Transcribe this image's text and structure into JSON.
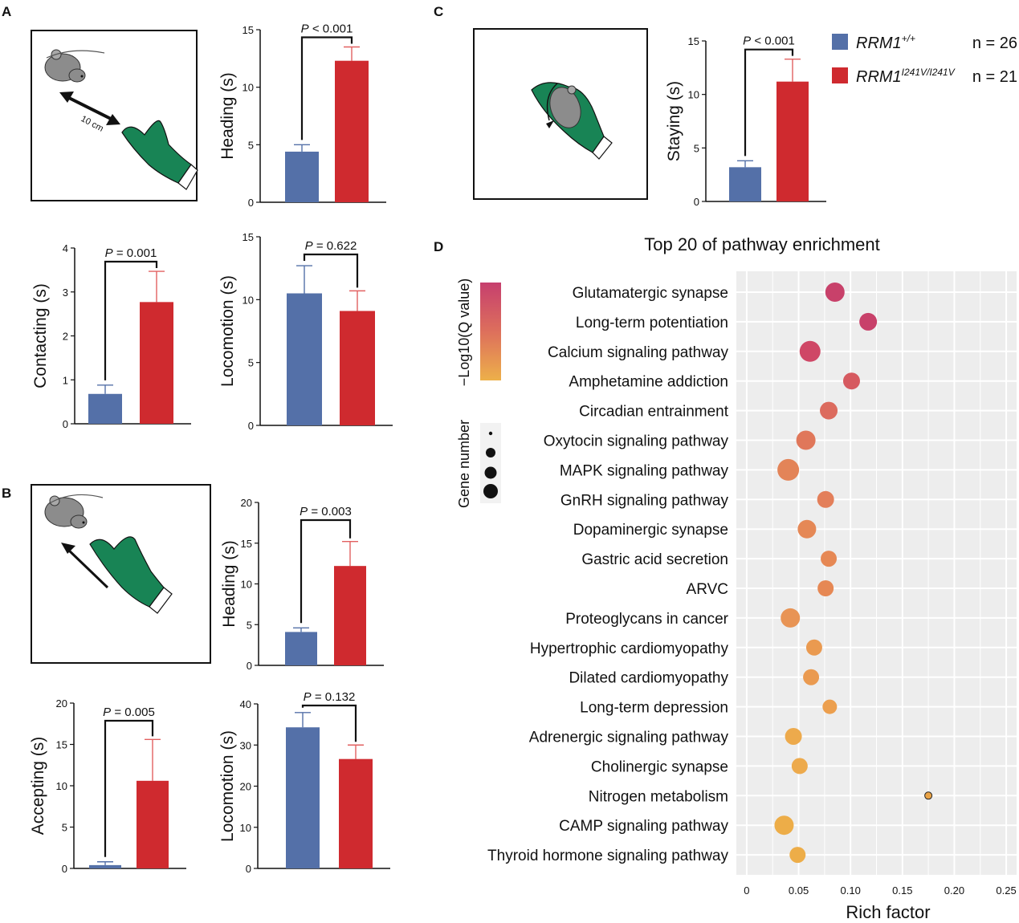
{
  "panel_labels": {
    "A": "A",
    "B": "B",
    "C": "C",
    "D": "D"
  },
  "colors": {
    "wt": "#5470A8",
    "mut": "#CF2A2F",
    "wt_err": "#5470A8",
    "mut_err": "#E26060",
    "glove": "#188455",
    "mouse": "#8C8C8C",
    "grid_bg": "#EDEDED"
  },
  "schematics": {
    "distance_label": "10 cm"
  },
  "legend": {
    "wt": {
      "gene": "RRM1",
      "sup": "+/+",
      "n": "n = 26"
    },
    "mut": {
      "gene": "RRM1",
      "sup": "I241V/I241V",
      "n": "n = 21"
    }
  },
  "chart_data": [
    {
      "id": "A_heading",
      "type": "bar",
      "ylabel": "Heading (s)",
      "categories": [
        "RRM1+/+",
        "RRM1I241V/I241V"
      ],
      "values": [
        4.4,
        12.3
      ],
      "errors": [
        0.6,
        1.2
      ],
      "ylim": [
        0,
        15
      ],
      "yticks": [
        0,
        5,
        10,
        15
      ],
      "pvalue": "P < 0.001"
    },
    {
      "id": "A_contacting",
      "type": "bar",
      "ylabel": "Contacting (s)",
      "categories": [
        "RRM1+/+",
        "RRM1I241V/I241V"
      ],
      "values": [
        0.68,
        2.77
      ],
      "errors": [
        0.2,
        0.7
      ],
      "ylim": [
        0,
        4
      ],
      "yticks": [
        0,
        1,
        2,
        3,
        4
      ],
      "pvalue": "P = 0.001"
    },
    {
      "id": "A_locomotion",
      "type": "bar",
      "ylabel": "Locomotion (s)",
      "categories": [
        "RRM1+/+",
        "RRM1I241V/I241V"
      ],
      "values": [
        10.5,
        9.1
      ],
      "errors": [
        2.2,
        1.6
      ],
      "ylim": [
        0,
        15
      ],
      "yticks": [
        0,
        5,
        10,
        15
      ],
      "pvalue": "P = 0.622"
    },
    {
      "id": "B_heading",
      "type": "bar",
      "ylabel": "Heading (s)",
      "categories": [
        "RRM1+/+",
        "RRM1I241V/I241V"
      ],
      "values": [
        4.1,
        12.2
      ],
      "errors": [
        0.5,
        3.0
      ],
      "ylim": [
        0,
        20
      ],
      "yticks": [
        0,
        5,
        10,
        15,
        20
      ],
      "pvalue": "P = 0.003"
    },
    {
      "id": "B_accepting",
      "type": "bar",
      "ylabel": "Accepting (s)",
      "categories": [
        "RRM1+/+",
        "RRM1I241V/I241V"
      ],
      "values": [
        0.4,
        10.6
      ],
      "errors": [
        0.4,
        5.0
      ],
      "ylim": [
        0,
        20
      ],
      "yticks": [
        0,
        5,
        10,
        15,
        20
      ],
      "pvalue": "P = 0.005"
    },
    {
      "id": "B_locomotion",
      "type": "bar",
      "ylabel": "Locomotion (s)",
      "categories": [
        "RRM1+/+",
        "RRM1I241V/I241V"
      ],
      "values": [
        34.3,
        26.6
      ],
      "errors": [
        3.6,
        3.4
      ],
      "ylim": [
        0,
        40
      ],
      "yticks": [
        0,
        10,
        20,
        30,
        40
      ],
      "pvalue": "P = 0.132"
    },
    {
      "id": "C_staying",
      "type": "bar",
      "ylabel": "Staying (s)",
      "categories": [
        "RRM1+/+",
        "RRM1I241V/I241V"
      ],
      "values": [
        3.2,
        11.2
      ],
      "errors": [
        0.6,
        2.1
      ],
      "ylim": [
        0,
        15
      ],
      "yticks": [
        0,
        5,
        10,
        15
      ],
      "pvalue": "P < 0.001"
    },
    {
      "id": "D_enrichment",
      "type": "scatter",
      "title": "Top 20 of pathway enrichment",
      "xlabel": "Rich factor",
      "xlim": [
        -0.01,
        0.26
      ],
      "xticks": [
        0,
        0.05,
        0.1,
        0.15,
        0.2,
        0.25
      ],
      "xtick_labels": [
        "0",
        "0.05",
        "0.10",
        "0.15",
        "0.20",
        "0.25"
      ],
      "colorbar_label": "−Log10(Q value)",
      "size_legend_label": "Gene number",
      "grid": true,
      "points": [
        {
          "pathway": "Glutamatergic synapse",
          "x": 0.085,
          "size": 12,
          "color": "#C8416A"
        },
        {
          "pathway": "Long-term potentiation",
          "x": 0.117,
          "size": 11,
          "color": "#C8416A"
        },
        {
          "pathway": "Calcium signaling pathway",
          "x": 0.061,
          "size": 13,
          "color": "#CF4766"
        },
        {
          "pathway": "Amphetamine addiction",
          "x": 0.101,
          "size": 10.5,
          "color": "#D65A60"
        },
        {
          "pathway": "Circadian entrainment",
          "x": 0.079,
          "size": 11,
          "color": "#DC6B5E"
        },
        {
          "pathway": "Oxytocin signaling pathway",
          "x": 0.057,
          "size": 12,
          "color": "#E0775A"
        },
        {
          "pathway": "MAPK signaling pathway",
          "x": 0.04,
          "size": 13.5,
          "color": "#E38458"
        },
        {
          "pathway": "GnRH signaling pathway",
          "x": 0.076,
          "size": 10.5,
          "color": "#E37F5A"
        },
        {
          "pathway": "Dopaminergic synapse",
          "x": 0.058,
          "size": 11.5,
          "color": "#E58856"
        },
        {
          "pathway": "Gastric acid secretion",
          "x": 0.079,
          "size": 10,
          "color": "#E68854"
        },
        {
          "pathway": "ARVC",
          "x": 0.076,
          "size": 10,
          "color": "#E68854"
        },
        {
          "pathway": "Proteoglycans in cancer",
          "x": 0.042,
          "size": 12,
          "color": "#E89455"
        },
        {
          "pathway": "Hypertrophic cardiomyopathy",
          "x": 0.065,
          "size": 10,
          "color": "#EA9A50"
        },
        {
          "pathway": "Dilated cardiomyopathy",
          "x": 0.062,
          "size": 10,
          "color": "#EA9A50"
        },
        {
          "pathway": "Long-term depression",
          "x": 0.08,
          "size": 9,
          "color": "#EC9F4E"
        },
        {
          "pathway": "Adrenergic signaling pathway",
          "x": 0.045,
          "size": 10.5,
          "color": "#EDAA4C"
        },
        {
          "pathway": "Cholinergic synapse",
          "x": 0.051,
          "size": 10,
          "color": "#EDAA4C"
        },
        {
          "pathway": "Nitrogen metabolism",
          "x": 0.175,
          "size": 4.5,
          "color": "#EAA346"
        },
        {
          "pathway": "CAMP signaling pathway",
          "x": 0.036,
          "size": 12,
          "color": "#EDAD48"
        },
        {
          "pathway": "Thyroid hormone signaling pathway",
          "x": 0.049,
          "size": 10,
          "color": "#EDAD48"
        }
      ]
    }
  ]
}
